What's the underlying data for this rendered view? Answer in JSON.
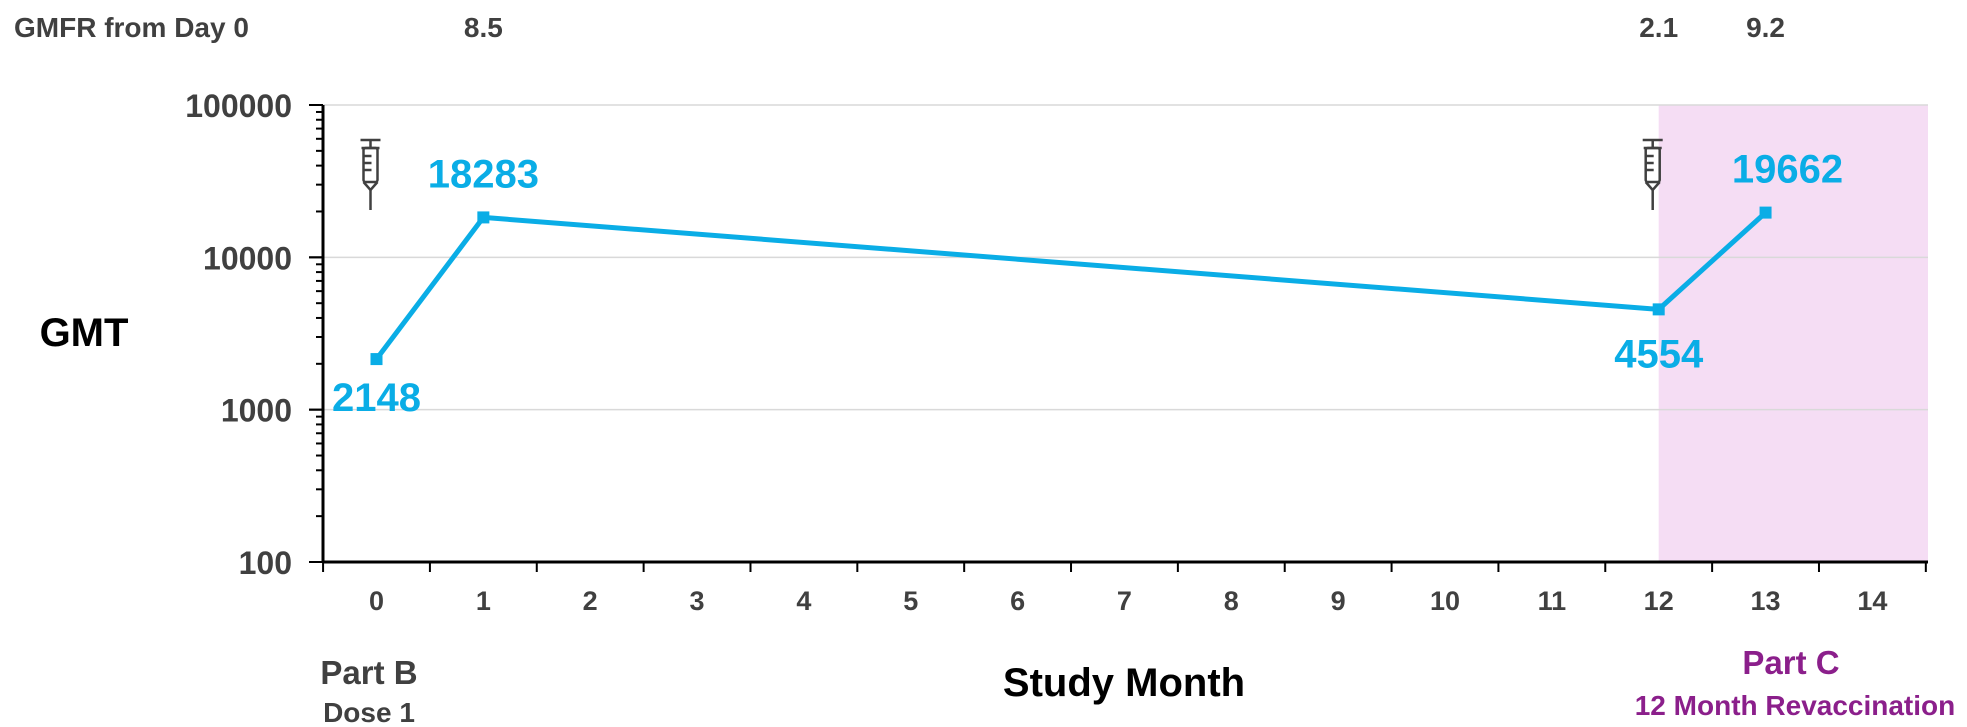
{
  "header": {
    "label": "GMFR from Day 0",
    "values": [
      {
        "month": 1,
        "text": "8.5"
      },
      {
        "month": 12,
        "text": "2.1"
      },
      {
        "month": 13,
        "text": "9.2"
      }
    ]
  },
  "colors": {
    "series": "#0AADE6",
    "highlight_band": "#F5DDF4",
    "part_c": "#8B1F8B",
    "axis": "#000000",
    "grid": "#D9D9D9"
  },
  "icons": [
    "syringe-icon",
    "syringe-icon"
  ],
  "annotations": {
    "part_b_title": "Part B",
    "part_b_sub": "Dose 1",
    "part_c_title": "Part C",
    "part_c_sub": "12 Month Revaccination"
  },
  "chart_data": {
    "type": "line",
    "title": "",
    "xlabel": "Study Month",
    "ylabel": "GMT",
    "yscale": "log",
    "ylim": [
      100,
      100000
    ],
    "xlim": [
      -0.5,
      14.5
    ],
    "x_ticks": [
      0,
      1,
      2,
      3,
      4,
      5,
      6,
      7,
      8,
      9,
      10,
      11,
      12,
      13,
      14
    ],
    "y_ticks": [
      100,
      1000,
      10000,
      100000
    ],
    "grid": true,
    "highlight_region": {
      "from": 12,
      "to": 14.5
    },
    "series": [
      {
        "x": [
          0,
          1,
          12,
          13
        ],
        "values": [
          2148,
          18283,
          4554,
          19662
        ],
        "data_labels": [
          "2148",
          "18283",
          "4554",
          "19662"
        ]
      }
    ],
    "injection_markers": [
      0,
      12
    ]
  }
}
